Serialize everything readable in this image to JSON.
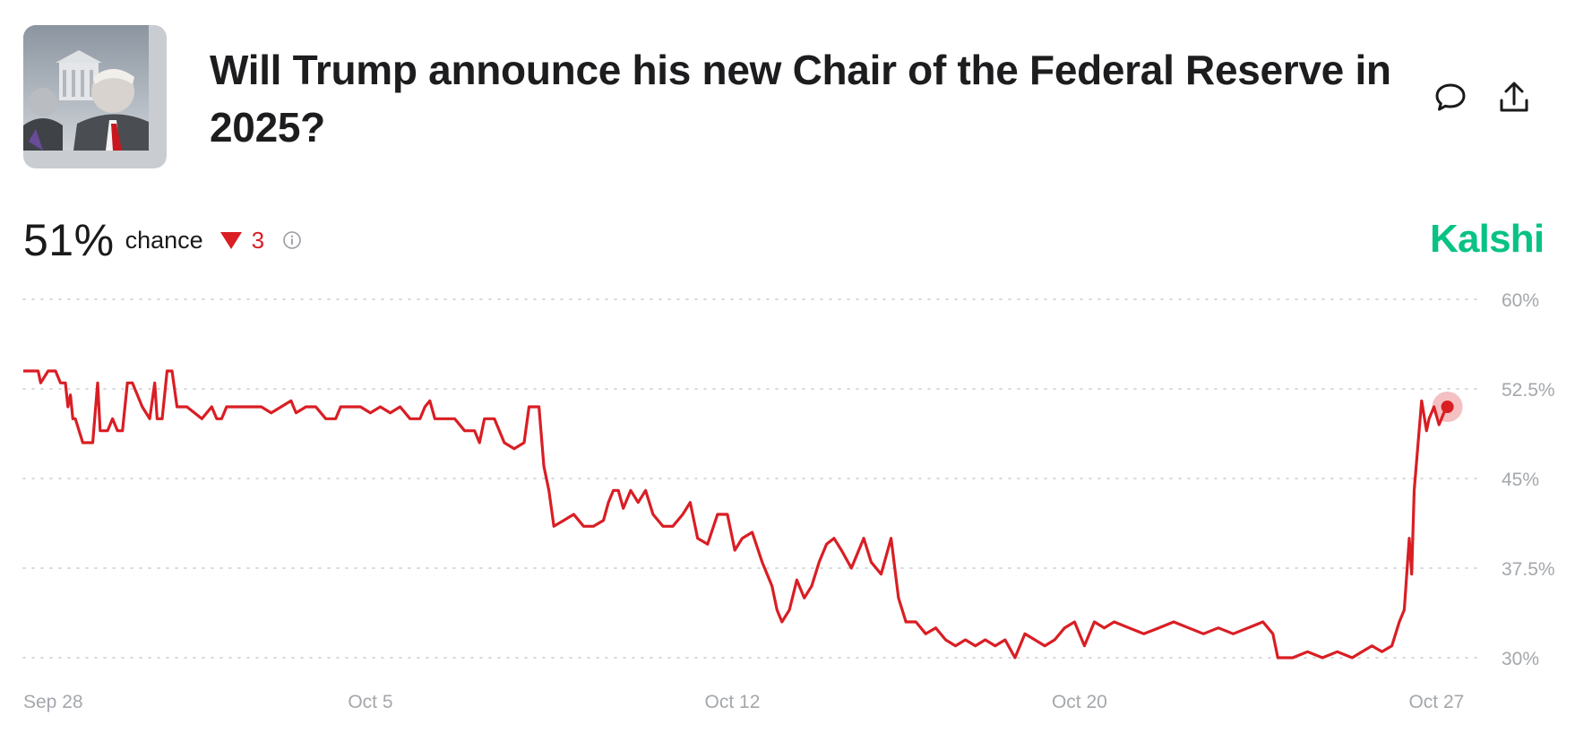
{
  "header": {
    "title": "Will Trump announce his new Chair of the Federal Reserve in 2025?",
    "thumbnail_icon": "market-photo-icon",
    "comment_icon": "comment-icon",
    "share_icon": "share-icon"
  },
  "stats": {
    "probability": "51%",
    "chance_label": "chance",
    "change": "3",
    "change_direction": "down",
    "change_color": "#d91e24"
  },
  "brand": {
    "name": "Kalshi",
    "color": "#09c285"
  },
  "chart_data": {
    "type": "line",
    "title": "",
    "xlabel": "",
    "ylabel": "",
    "ylim": [
      30,
      60
    ],
    "yticks": [
      60,
      52.5,
      45,
      37.5,
      30
    ],
    "ytick_labels": [
      "60%",
      "52.5%",
      "45%",
      "37.5%",
      "30%"
    ],
    "xticks": [
      {
        "x": 0,
        "label": "Sep 28"
      },
      {
        "x": 7,
        "label": "Oct 5"
      },
      {
        "x": 14.3,
        "label": "Oct 12"
      },
      {
        "x": 21.3,
        "label": "Oct 20"
      },
      {
        "x": 28.5,
        "label": "Oct 27"
      }
    ],
    "grid": true,
    "line_color": "#d91e24",
    "series": [
      {
        "values": [
          [
            0.0,
            54
          ],
          [
            0.3,
            54
          ],
          [
            0.35,
            53
          ],
          [
            0.5,
            54
          ],
          [
            0.65,
            54
          ],
          [
            0.75,
            53
          ],
          [
            0.85,
            53
          ],
          [
            0.9,
            51
          ],
          [
            0.95,
            52
          ],
          [
            1.0,
            50
          ],
          [
            1.05,
            50
          ],
          [
            1.2,
            48
          ],
          [
            1.4,
            48
          ],
          [
            1.5,
            53
          ],
          [
            1.55,
            49
          ],
          [
            1.7,
            49
          ],
          [
            1.8,
            50
          ],
          [
            1.9,
            49
          ],
          [
            2.0,
            49
          ],
          [
            2.1,
            53
          ],
          [
            2.2,
            53
          ],
          [
            2.3,
            52
          ],
          [
            2.4,
            51
          ],
          [
            2.55,
            50
          ],
          [
            2.65,
            53
          ],
          [
            2.7,
            50
          ],
          [
            2.8,
            50
          ],
          [
            2.9,
            54
          ],
          [
            3.0,
            54
          ],
          [
            3.1,
            51
          ],
          [
            3.3,
            51
          ],
          [
            3.6,
            50
          ],
          [
            3.8,
            51
          ],
          [
            3.9,
            50
          ],
          [
            4.0,
            50
          ],
          [
            4.1,
            51
          ],
          [
            4.3,
            51
          ],
          [
            4.5,
            51
          ],
          [
            4.8,
            51
          ],
          [
            5.0,
            50.5
          ],
          [
            5.2,
            51
          ],
          [
            5.4,
            51.5
          ],
          [
            5.5,
            50.5
          ],
          [
            5.7,
            51
          ],
          [
            5.9,
            51
          ],
          [
            6.1,
            50
          ],
          [
            6.3,
            50
          ],
          [
            6.4,
            51
          ],
          [
            6.6,
            51
          ],
          [
            6.8,
            51
          ],
          [
            7.0,
            50.5
          ],
          [
            7.2,
            51
          ],
          [
            7.4,
            50.5
          ],
          [
            7.6,
            51
          ],
          [
            7.8,
            50
          ],
          [
            8.0,
            50
          ],
          [
            8.1,
            51
          ],
          [
            8.2,
            51.5
          ],
          [
            8.3,
            50
          ],
          [
            8.5,
            50
          ],
          [
            8.7,
            50
          ],
          [
            8.9,
            49
          ],
          [
            9.1,
            49
          ],
          [
            9.2,
            48
          ],
          [
            9.3,
            50
          ],
          [
            9.5,
            50
          ],
          [
            9.7,
            48
          ],
          [
            9.9,
            47.5
          ],
          [
            10.1,
            48
          ],
          [
            10.2,
            51
          ],
          [
            10.4,
            51
          ],
          [
            10.5,
            46
          ],
          [
            10.6,
            44
          ],
          [
            10.7,
            41
          ],
          [
            10.9,
            41.5
          ],
          [
            11.1,
            42
          ],
          [
            11.3,
            41
          ],
          [
            11.5,
            41
          ],
          [
            11.7,
            41.5
          ],
          [
            11.8,
            43
          ],
          [
            11.9,
            44
          ],
          [
            12.0,
            44
          ],
          [
            12.1,
            42.5
          ],
          [
            12.25,
            44
          ],
          [
            12.4,
            43
          ],
          [
            12.55,
            44
          ],
          [
            12.7,
            42
          ],
          [
            12.9,
            41
          ],
          [
            13.1,
            41
          ],
          [
            13.3,
            42
          ],
          [
            13.45,
            43
          ],
          [
            13.6,
            40
          ],
          [
            13.8,
            39.5
          ],
          [
            14.0,
            42
          ],
          [
            14.2,
            42
          ],
          [
            14.35,
            39
          ],
          [
            14.5,
            40
          ],
          [
            14.7,
            40.5
          ],
          [
            14.9,
            38
          ],
          [
            15.1,
            36
          ],
          [
            15.2,
            34
          ],
          [
            15.3,
            33
          ],
          [
            15.45,
            34
          ],
          [
            15.6,
            36.5
          ],
          [
            15.75,
            35
          ],
          [
            15.9,
            36
          ],
          [
            16.05,
            38
          ],
          [
            16.2,
            39.5
          ],
          [
            16.35,
            40
          ],
          [
            16.5,
            39
          ],
          [
            16.7,
            37.5
          ],
          [
            16.85,
            39
          ],
          [
            16.95,
            40
          ],
          [
            17.1,
            38
          ],
          [
            17.3,
            37
          ],
          [
            17.5,
            40
          ],
          [
            17.65,
            35
          ],
          [
            17.8,
            33
          ],
          [
            18.0,
            33
          ],
          [
            18.2,
            32
          ],
          [
            18.4,
            32.5
          ],
          [
            18.6,
            31.5
          ],
          [
            18.8,
            31
          ],
          [
            19.0,
            31.5
          ],
          [
            19.2,
            31
          ],
          [
            19.4,
            31.5
          ],
          [
            19.6,
            31
          ],
          [
            19.8,
            31.5
          ],
          [
            20.0,
            30
          ],
          [
            20.2,
            32
          ],
          [
            20.4,
            31.5
          ],
          [
            20.6,
            31
          ],
          [
            20.8,
            31.5
          ],
          [
            21.0,
            32.5
          ],
          [
            21.2,
            33
          ],
          [
            21.4,
            31
          ],
          [
            21.6,
            33
          ],
          [
            21.8,
            32.5
          ],
          [
            22.0,
            33
          ],
          [
            22.3,
            32.5
          ],
          [
            22.6,
            32
          ],
          [
            22.9,
            32.5
          ],
          [
            23.2,
            33
          ],
          [
            23.5,
            32.5
          ],
          [
            23.8,
            32
          ],
          [
            24.1,
            32.5
          ],
          [
            24.4,
            32
          ],
          [
            24.7,
            32.5
          ],
          [
            25.0,
            33
          ],
          [
            25.2,
            32
          ],
          [
            25.3,
            30
          ],
          [
            25.6,
            30
          ],
          [
            25.9,
            30.5
          ],
          [
            26.2,
            30
          ],
          [
            26.5,
            30.5
          ],
          [
            26.8,
            30
          ],
          [
            27.0,
            30.5
          ],
          [
            27.2,
            31
          ],
          [
            27.4,
            30.5
          ],
          [
            27.6,
            31
          ],
          [
            27.75,
            33
          ],
          [
            27.85,
            34
          ],
          [
            27.95,
            40
          ],
          [
            28.0,
            37
          ],
          [
            28.05,
            44
          ],
          [
            28.15,
            49
          ],
          [
            28.2,
            51.5
          ],
          [
            28.3,
            49
          ],
          [
            28.35,
            50
          ],
          [
            28.45,
            51
          ],
          [
            28.55,
            49.5
          ],
          [
            28.65,
            50.5
          ],
          [
            28.72,
            51
          ]
        ]
      }
    ]
  }
}
